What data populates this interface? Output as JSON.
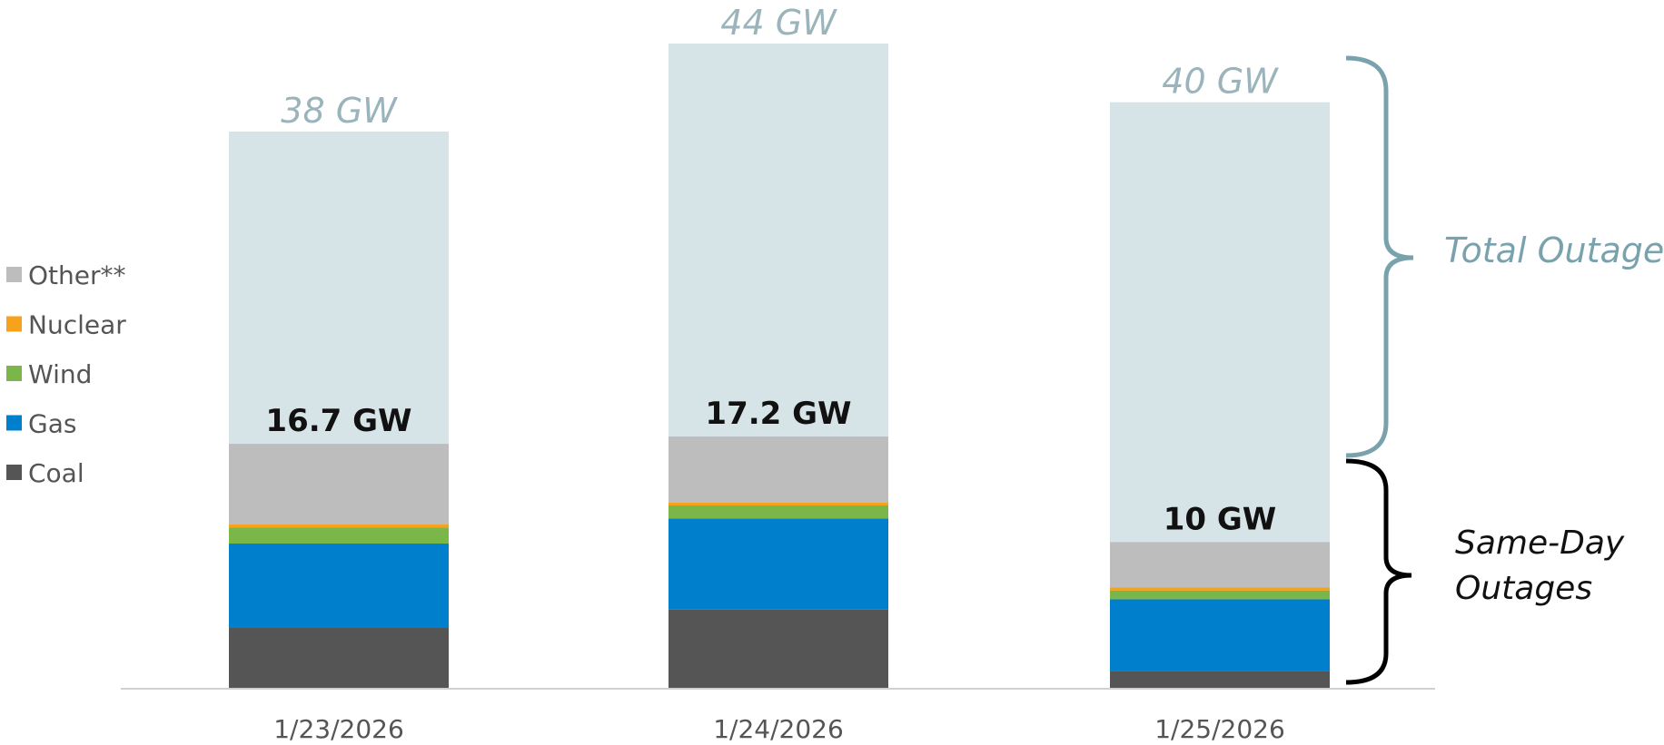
{
  "chart_data": {
    "type": "bar",
    "categories": [
      "1/23/2026",
      "1/24/2026",
      "1/25/2026"
    ],
    "total_outages": [
      38,
      44,
      40
    ],
    "total_labels": [
      "38 GW",
      "44 GW",
      "40 GW"
    ],
    "same_day_totals": [
      16.7,
      17.2,
      10
    ],
    "same_day_labels": [
      "16.7 GW",
      "17.2 GW",
      "10 GW"
    ],
    "series": [
      {
        "name": "Coal",
        "color": "#555555",
        "values": [
          4.2,
          5.4,
          1.2
        ]
      },
      {
        "name": "Gas",
        "color": "#0080cc",
        "values": [
          5.7,
          6.2,
          4.9
        ]
      },
      {
        "name": "Wind",
        "color": "#7ab648",
        "values": [
          1.1,
          0.9,
          0.6
        ]
      },
      {
        "name": "Nuclear",
        "color": "#f7a21b",
        "values": [
          0.2,
          0.2,
          0.2
        ]
      },
      {
        "name": "Other**",
        "color": "#bdbdbd",
        "values": [
          5.5,
          4.5,
          3.1
        ]
      }
    ],
    "total_color": "#d6e4e7",
    "ylim": [
      0,
      44
    ],
    "legend": [
      "Other**",
      "Nuclear",
      "Wind",
      "Gas",
      "Coal"
    ],
    "legend_position": "left",
    "annotations": {
      "total": "Total Outages",
      "same_day_line1": "Same-Day",
      "same_day_line2": "Outages"
    }
  }
}
